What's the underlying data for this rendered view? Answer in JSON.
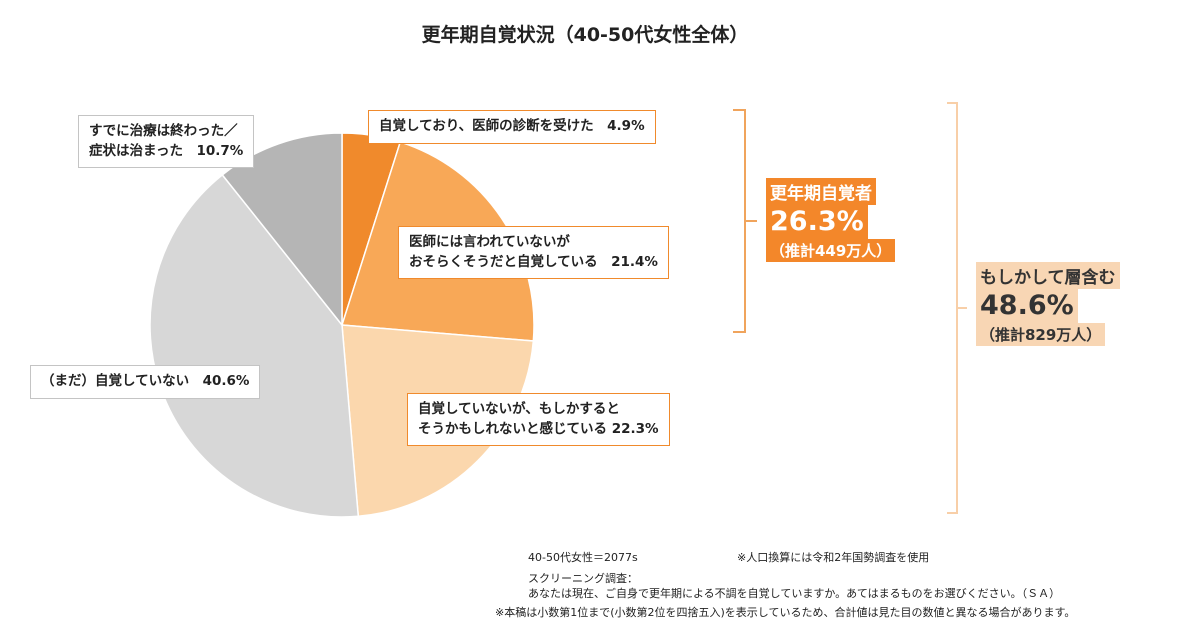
{
  "chart_data": {
    "type": "pie",
    "title": "更年期自覚状況（40-50代女性全体）",
    "slices": [
      {
        "label_lines": [
          "自覚しており、医師の診断を受けた　4.9%"
        ],
        "value": 4.9,
        "color": "#f08a2c"
      },
      {
        "label_lines": [
          "医師には言われていないが",
          "おそらくそうだと自覚している　21.4%"
        ],
        "value": 21.4,
        "color": "#f8a857"
      },
      {
        "label_lines": [
          "自覚していないが、もしかすると",
          "そうかもしれないと感じている 22.3%"
        ],
        "value": 22.3,
        "color": "#fbd7ad"
      },
      {
        "label_lines": [
          "（まだ）自覚していない　40.6%"
        ],
        "value": 40.6,
        "color": "#d7d7d7"
      },
      {
        "label_lines": [
          "すでに治療は終わった／",
          "症状は治まった　10.7%"
        ],
        "value": 10.7,
        "color": "#b5b5b5"
      }
    ]
  },
  "highlights": {
    "aware": {
      "title": "更年期自覚者",
      "pct": "26.3%",
      "estimate": "（推計449万人）"
    },
    "maybe": {
      "title": "もしかして層含む",
      "pct": "48.6%",
      "estimate": "（推計829万人）"
    }
  },
  "footnotes": {
    "sample": "40-50代女性＝2077s",
    "population": "※人口換算には令和2年国勢調査を使用",
    "screening_label": "スクリーニング調査：",
    "screening_question": "あなたは現在、ご自身で更年期による不調を自覚していますか。あてはまるものをお選びください。（ＳＡ）",
    "rounding": "※本稿は小数第1位まで(小数第2位を四捨五入)を表示しているため、合計値は見た目の数値と異なる場合があります。"
  },
  "colors": {
    "accent": "#f3872a",
    "accent_light": "#f8d6b4",
    "bracket": "#f0a45c",
    "bracket_light": "#f8cfa8"
  }
}
